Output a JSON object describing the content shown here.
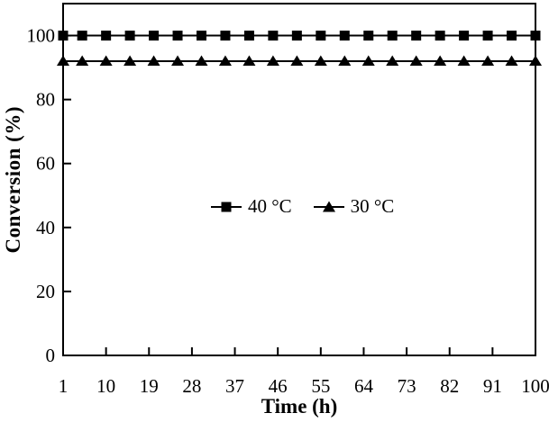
{
  "figure": {
    "background": "#ffffff",
    "foreground": "#000000"
  },
  "chart_data": {
    "type": "line",
    "title": "",
    "xlabel": "Time (h)",
    "ylabel": "Conversion (%)",
    "xlim": [
      1,
      100
    ],
    "ylim": [
      0,
      110
    ],
    "xticks": [
      1,
      10,
      19,
      28,
      37,
      46,
      55,
      64,
      73,
      82,
      91,
      100
    ],
    "yticks": [
      0,
      20,
      40,
      60,
      80,
      100
    ],
    "grid": false,
    "legend_position": "inside-center",
    "x": [
      1,
      5,
      10,
      15,
      20,
      25,
      30,
      35,
      40,
      45,
      50,
      55,
      60,
      65,
      70,
      75,
      80,
      85,
      90,
      95,
      100
    ],
    "series": [
      {
        "name": "40 °C",
        "marker": "square",
        "color": "#000000",
        "values": [
          100,
          100,
          100,
          100,
          100,
          100,
          100,
          100,
          100,
          100,
          100,
          100,
          100,
          100,
          100,
          100,
          100,
          100,
          100,
          100,
          100
        ]
      },
      {
        "name": "30 °C",
        "marker": "triangle",
        "color": "#000000",
        "values": [
          92,
          92,
          92,
          92,
          92,
          92,
          92,
          92,
          92,
          92,
          92,
          92,
          92,
          92,
          92,
          92,
          92,
          92,
          92,
          92,
          92
        ]
      }
    ]
  }
}
